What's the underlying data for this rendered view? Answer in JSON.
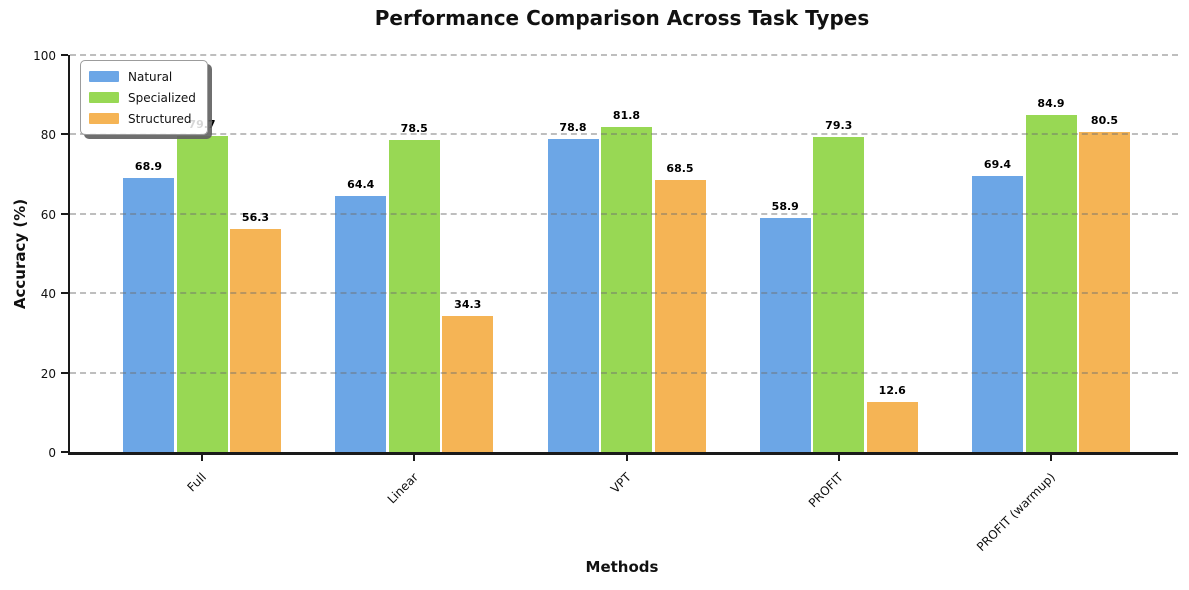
{
  "chart_data": {
    "type": "bar",
    "title": "Performance Comparison Across Task Types",
    "xlabel": "Methods",
    "ylabel": "Accuracy (%)",
    "categories": [
      "Full",
      "Linear",
      "VPT",
      "PROFIT",
      "PROFIT (warmup)"
    ],
    "series": [
      {
        "name": "Natural",
        "color": "#6CA6E6",
        "values": [
          68.9,
          64.4,
          78.8,
          58.9,
          69.4
        ]
      },
      {
        "name": "Specialized",
        "color": "#98D854",
        "values": [
          79.7,
          78.5,
          81.8,
          79.3,
          84.9
        ]
      },
      {
        "name": "Structured",
        "color": "#F5B455",
        "values": [
          56.3,
          34.3,
          68.5,
          12.6,
          80.5
        ]
      }
    ],
    "ylim": [
      0,
      100
    ],
    "yticks": [
      0,
      20,
      40,
      60,
      80,
      100
    ],
    "grid": "horizontal dashed",
    "legend_position": "upper left",
    "value_labels": true,
    "axis_color": "#1a1a1a"
  }
}
